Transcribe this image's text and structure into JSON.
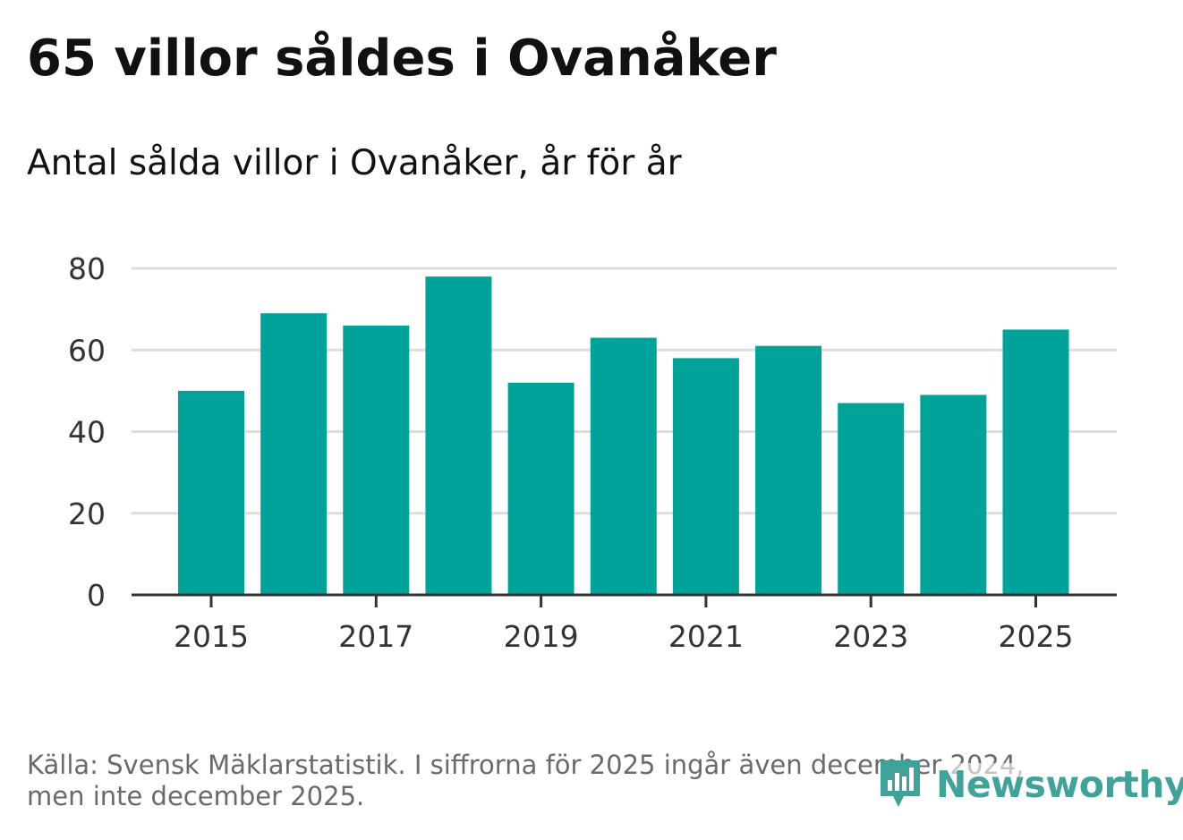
{
  "header": {
    "title": "65 villor såldes i Ovanåker",
    "subtitle": "Antal sålda villor i Ovanåker, år för år"
  },
  "footer": {
    "source_line1": "Källa: Svensk Mäklarstatistik. I siffrorna för 2025 ingår även december 2024,",
    "source_line2": "men inte december 2025."
  },
  "brand": {
    "name": "Newsworthy",
    "icon": "newsworthy-logo-icon",
    "color": "#3fa39c"
  },
  "colors": {
    "bar": "#00a39a",
    "grid": "#dddddd",
    "axis": "#333333"
  },
  "chart_data": {
    "type": "bar",
    "title": "65 villor såldes i Ovanåker",
    "subtitle": "Antal sålda villor i Ovanåker, år för år",
    "xlabel": "",
    "ylabel": "",
    "categories": [
      "2015",
      "2016",
      "2017",
      "2018",
      "2019",
      "2020",
      "2021",
      "2022",
      "2023",
      "2024",
      "2025"
    ],
    "values": [
      50,
      69,
      66,
      78,
      52,
      63,
      58,
      61,
      47,
      49,
      65
    ],
    "x_tick_labels": [
      "2015",
      "2017",
      "2019",
      "2021",
      "2023",
      "2025"
    ],
    "y_ticks": [
      "0",
      "20",
      "40",
      "60",
      "80"
    ],
    "ylim": [
      0,
      80
    ],
    "grid": true,
    "legend": "none"
  }
}
